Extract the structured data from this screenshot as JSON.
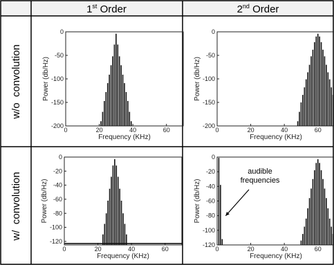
{
  "table": {
    "columns": [
      {
        "base": "1",
        "sup": "st",
        "rest": " Order"
      },
      {
        "base": "2",
        "sup": "nd",
        "rest": " Order"
      }
    ],
    "rows": [
      "w/o  convolution",
      "w/  convolution"
    ]
  },
  "chart_data": [
    {
      "type": "bar",
      "panel": "w/o convolution, 1st order",
      "xlabel": "Frequency (KHz)",
      "ylabel": "Power (db/Hz)",
      "xlim": [
        0,
        70
      ],
      "ylim": [
        -200,
        0
      ],
      "xticks": [
        "0",
        "20",
        "40",
        "60"
      ],
      "yticks": [
        "-200",
        "-150",
        "-100",
        "-50",
        "0"
      ],
      "x": [
        21,
        22,
        23,
        24,
        25,
        26,
        27,
        28,
        29,
        30,
        31,
        32,
        33,
        34,
        35,
        36,
        37,
        38,
        39
      ],
      "values": [
        -190,
        -170,
        -147,
        -128,
        -109,
        -91,
        -71,
        -52,
        -27,
        -4,
        -27,
        -52,
        -71,
        -91,
        -109,
        -128,
        -147,
        -170,
        -190
      ]
    },
    {
      "type": "bar",
      "panel": "w/o convolution, 2nd order",
      "xlabel": "Frequency (KHz)",
      "ylabel": "Power (db/Hz)",
      "xlim": [
        0,
        70
      ],
      "ylim": [
        -200,
        0
      ],
      "xticks": [
        "0",
        "20",
        "40",
        "60"
      ],
      "yticks": [
        "-200",
        "-150",
        "-100",
        "-50",
        "0"
      ],
      "x": [
        48,
        49,
        50,
        51,
        52,
        53,
        54,
        55,
        56,
        57,
        58,
        59,
        60,
        61,
        62,
        63,
        64,
        65,
        66,
        67,
        68,
        69
      ],
      "values": [
        -190,
        -170,
        -150,
        -134,
        -118,
        -101,
        -86,
        -70,
        -52,
        -38,
        -22,
        -10,
        -4,
        -10,
        -22,
        -38,
        -52,
        -70,
        -86,
        -101,
        -118,
        -134
      ]
    },
    {
      "type": "bar",
      "panel": "w/ convolution, 1st order",
      "xlabel": "Frequency (KHz)",
      "ylabel": "Power (db/Hz)",
      "xlim": [
        0,
        70
      ],
      "ylim": [
        -125,
        0
      ],
      "xticks": [
        "0",
        "20",
        "40",
        "60"
      ],
      "yticks": [
        "-120",
        "-100",
        "-80",
        "-60",
        "-40",
        "-20",
        "0"
      ],
      "floor": -123,
      "x": [
        23,
        24,
        25,
        26,
        27,
        28,
        29,
        30,
        31,
        32,
        33,
        34,
        35,
        36,
        37
      ],
      "values": [
        -110,
        -95,
        -80,
        -62,
        -45,
        -28,
        -12,
        -3,
        -12,
        -28,
        -45,
        -62,
        -80,
        -95,
        -110
      ]
    },
    {
      "type": "bar",
      "panel": "w/ convolution, 2nd order",
      "xlabel": "Frequency (KHz)",
      "ylabel": "Power (db/Hz)",
      "xlim": [
        0,
        70
      ],
      "ylim": [
        -120,
        0
      ],
      "xticks": [
        "0",
        "20",
        "40",
        "60"
      ],
      "yticks": [
        "-120",
        "-100",
        "-80",
        "-60",
        "-40",
        "-20",
        "0"
      ],
      "x": [
        1,
        2,
        3,
        50,
        51,
        52,
        53,
        54,
        55,
        56,
        57,
        58,
        59,
        60,
        61,
        62,
        63,
        64,
        65,
        66,
        67,
        68,
        69
      ],
      "values": [
        -1,
        -38,
        -112,
        -114,
        -105,
        -95,
        -84,
        -70,
        -56,
        -43,
        -30,
        -18,
        -8,
        -3,
        -8,
        -18,
        -30,
        -43,
        -56,
        -70,
        -84,
        -95,
        -105
      ],
      "annotation": {
        "text": [
          "audible",
          "frequencies"
        ],
        "x": 3,
        "y": -84
      }
    }
  ]
}
